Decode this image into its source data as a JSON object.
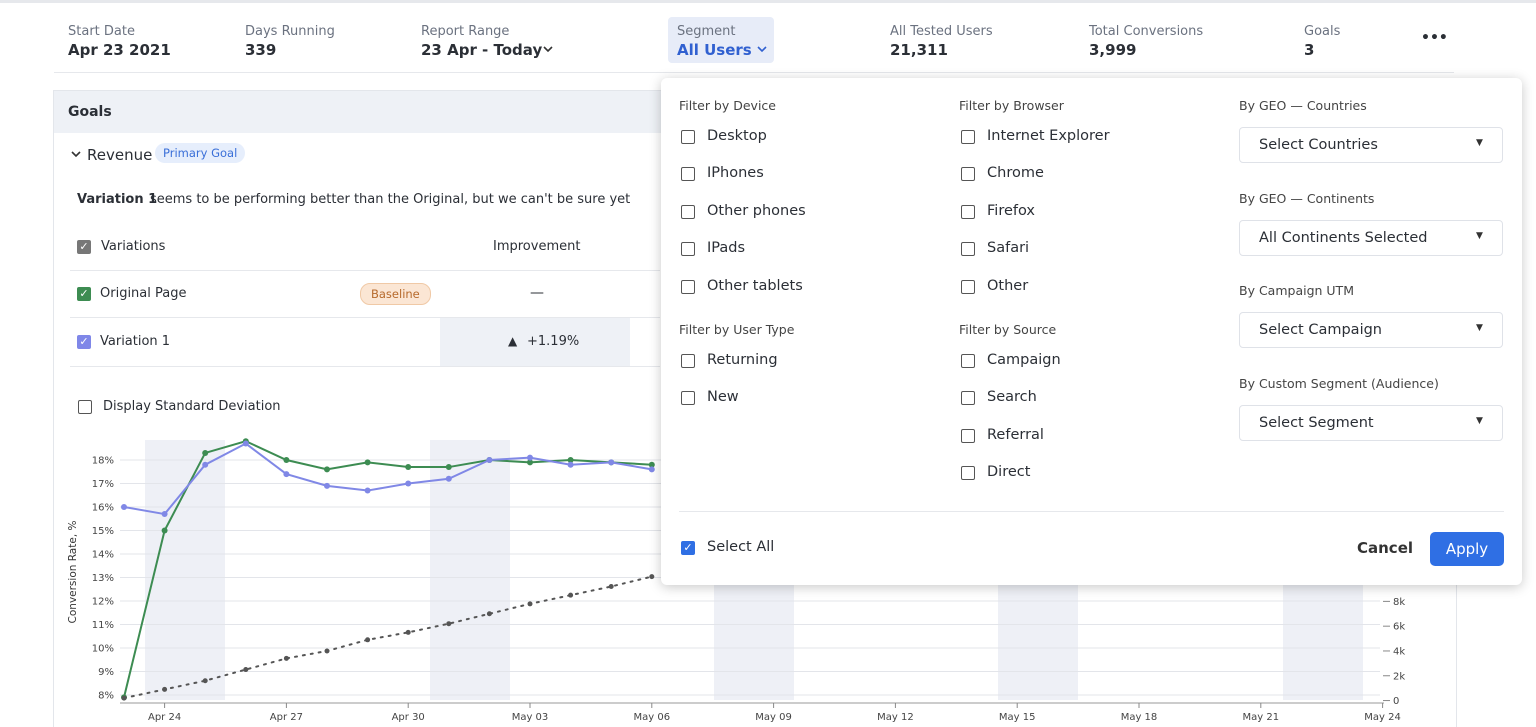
{
  "header": {
    "stats": [
      {
        "label": "Start Date",
        "value": "Apr 23 2021"
      },
      {
        "label": "Days Running",
        "value": "339"
      },
      {
        "label": "Report Range",
        "value": "23 Apr - Today"
      },
      {
        "label": "Segment",
        "value": "All Users"
      },
      {
        "label": "All Tested Users",
        "value": "21,311"
      },
      {
        "label": "Total Conversions",
        "value": "3,999"
      },
      {
        "label": "Goals",
        "value": "3"
      }
    ]
  },
  "goals": {
    "title": "Goals",
    "goal_name": "Revenue",
    "goal_badge": "Primary Goal",
    "summary_bold": "Variation 1",
    "summary": "seems to be performing better than the Original, but we can't be sure yet",
    "table": {
      "headers": [
        "Variations",
        "Improvement"
      ],
      "rows": [
        [
          "Original Page",
          "Baseline",
          "—"
        ],
        [
          "Variation 1",
          "+1.19%"
        ]
      ]
    },
    "std_dev": "Display Standard Deviation"
  },
  "chart": {
    "type": "line",
    "y_label": "Conversion Rate, %",
    "x": [
      "Apr 23",
      "Apr 24",
      "Apr 25",
      "Apr 26",
      "Apr 27",
      "Apr 28",
      "Apr 29",
      "Apr 30",
      "May 01",
      "May 02",
      "May 03",
      "May 04",
      "May 05",
      "May 06"
    ],
    "xticks": [
      "Apr 24",
      "Apr 27",
      "Apr 30",
      "May 03",
      "May 06",
      "May 09",
      "May 12",
      "May 15",
      "May 18",
      "May 21",
      "May 24"
    ],
    "ylim": [
      7.5,
      19
    ],
    "yticks": [
      {
        "value": 8,
        "label": "8%"
      },
      {
        "value": 9,
        "label": "9%"
      },
      {
        "value": 10,
        "label": "10%"
      },
      {
        "value": 11,
        "label": "11%"
      },
      {
        "value": 12,
        "label": "12%"
      },
      {
        "value": 13,
        "label": "13%"
      },
      {
        "value": 14,
        "label": "14%"
      },
      {
        "value": 15,
        "label": "15%"
      },
      {
        "value": 16,
        "label": "16%"
      },
      {
        "value": 17,
        "label": "17%"
      },
      {
        "value": 18,
        "label": "18%"
      }
    ],
    "y2lim": [
      -500,
      21300
    ],
    "y2ticks": [
      0,
      {
        "value": 2000,
        "label": "2k"
      },
      {
        "value": 4000,
        "label": "4k"
      },
      {
        "value": 6000,
        "label": "6k"
      },
      {
        "value": 8000,
        "label": "8k"
      }
    ],
    "grid": true,
    "series": [
      {
        "color": "#3d8c52",
        "values": [
          7.9,
          15,
          18.3,
          18.8,
          18.0,
          17.6,
          17.9,
          17.7,
          17.7,
          18.0,
          17.9,
          18.0,
          17.9,
          17.8
        ]
      },
      {
        "color": "#8088e6",
        "values": [
          16.0,
          15.7,
          17.8,
          18.7,
          17.4,
          16.9,
          16.7,
          17.0,
          17.2,
          18.0,
          18.1,
          17.8,
          17.9,
          17.6
        ]
      },
      {
        "color": "#555555",
        "axis": "y2",
        "dashed": true,
        "values": [
          200,
          900,
          1600,
          2500,
          3400,
          4000,
          4900,
          5500,
          6200,
          7000,
          7800,
          8500,
          9200,
          10000
        ]
      }
    ]
  },
  "segment_menu": {
    "groups": [
      {
        "title": "Filter by Device",
        "options": [
          "Desktop",
          "IPhones",
          "Other phones",
          "IPads",
          "Other tablets"
        ]
      },
      {
        "title": "Filter by User Type",
        "options": [
          "Returning",
          "New"
        ]
      },
      {
        "title": "Filter by Browser",
        "options": [
          "Internet Explorer",
          "Chrome",
          "Firefox",
          "Safari",
          "Other"
        ]
      },
      {
        "title": "Filter by Source",
        "options": [
          "Campaign",
          "Search",
          "Referral",
          "Direct"
        ]
      }
    ],
    "selects": [
      {
        "label": "By GEO — Countries",
        "value": "Select Countries"
      },
      {
        "label": "By GEO — Continents",
        "value": "All Continents Selected"
      },
      {
        "label": "By Campaign UTM",
        "value": "Select Campaign"
      },
      {
        "label": "By Custom Segment (Audience)",
        "value": "Select Segment"
      }
    ],
    "select_all": "Select All",
    "cancel": "Cancel",
    "apply": "Apply"
  }
}
